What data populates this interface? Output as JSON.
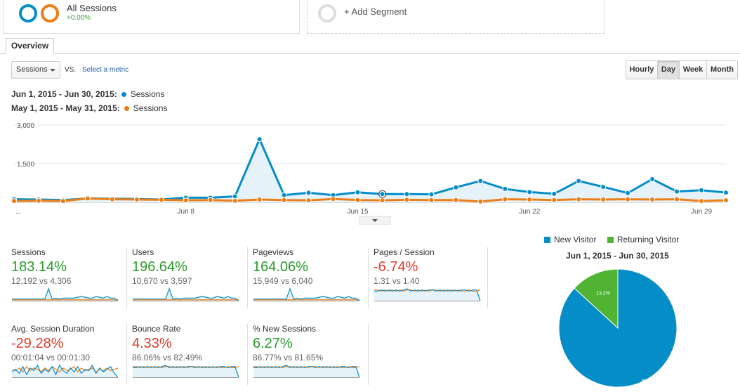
{
  "segments": {
    "all_sessions": {
      "title": "All Sessions",
      "sub": "+0.00%"
    },
    "add_segment": "+ Add Segment"
  },
  "tabs": {
    "overview": "Overview"
  },
  "controls": {
    "metric": "Sessions",
    "vs": "VS.",
    "select_metric": "Select a metric",
    "granularity": [
      "Hourly",
      "Day",
      "Week",
      "Month"
    ],
    "active_granularity": "Day"
  },
  "legend": {
    "current": {
      "range": "Jun 1, 2015 - Jun 30, 2015:",
      "label": "Sessions",
      "color": "#058dc7"
    },
    "previous": {
      "range": "May 1, 2015 - May 31, 2015:",
      "label": "Sessions",
      "color": "#ed7e17"
    }
  },
  "chart_data": {
    "type": "line",
    "y_ticks": [
      "3,000",
      "1,500"
    ],
    "x_ticks": [
      "...",
      "Jun 8",
      "Jun 15",
      "Jun 22",
      "Jun 29"
    ],
    "ylim": [
      0,
      3000
    ],
    "series": [
      {
        "name": "Sessions",
        "color": "#058dc7",
        "values": [
          120,
          110,
          90,
          150,
          140,
          130,
          110,
          180,
          180,
          230,
          2450,
          280,
          370,
          280,
          390,
          320,
          320,
          310,
          580,
          830,
          520,
          400,
          330,
          830,
          600,
          360,
          900,
          420,
          470,
          380
        ]
      },
      {
        "name": "Sessions",
        "color": "#ed7e17",
        "values": [
          50,
          60,
          50,
          150,
          120,
          110,
          100,
          80,
          90,
          60,
          110,
          90,
          80,
          130,
          90,
          80,
          100,
          90,
          90,
          30,
          120,
          110,
          90,
          120,
          110,
          120,
          110,
          120,
          50,
          80
        ]
      }
    ]
  },
  "scorecards": [
    {
      "name": "Sessions",
      "pct": "183.14%",
      "cmp": "12,192 vs 4,306",
      "trend": "up"
    },
    {
      "name": "Users",
      "pct": "196.64%",
      "cmp": "10,670 vs 3,597",
      "trend": "up"
    },
    {
      "name": "Pageviews",
      "pct": "164.06%",
      "cmp": "15,949 vs 6,040",
      "trend": "up"
    },
    {
      "name": "Pages / Session",
      "pct": "-6.74%",
      "cmp": "1.31 vs 1.40",
      "trend": "down"
    },
    {
      "name": "Avg. Session Duration",
      "pct": "-29.28%",
      "cmp": "00:01:04 vs 00:01:30",
      "trend": "down"
    },
    {
      "name": "Bounce Rate",
      "pct": "4.33%",
      "cmp": "86.06% vs 82.49%",
      "trend": "down"
    },
    {
      "name": "% New Sessions",
      "pct": "6.27%",
      "cmp": "86.77% vs 81.65%",
      "trend": "up"
    }
  ],
  "pie": {
    "legend": [
      {
        "label": "New Visitor",
        "color": "#058dc7"
      },
      {
        "label": "Returning Visitor",
        "color": "#50b432"
      }
    ],
    "title": "Jun 1, 2015 - Jun 30, 2015",
    "chart_data": {
      "type": "pie",
      "slices": [
        {
          "label": "New Visitor",
          "value": 86.8,
          "text": "86.8%"
        },
        {
          "label": "Returning Visitor",
          "value": 13.2,
          "text": "13.2%"
        }
      ]
    }
  }
}
